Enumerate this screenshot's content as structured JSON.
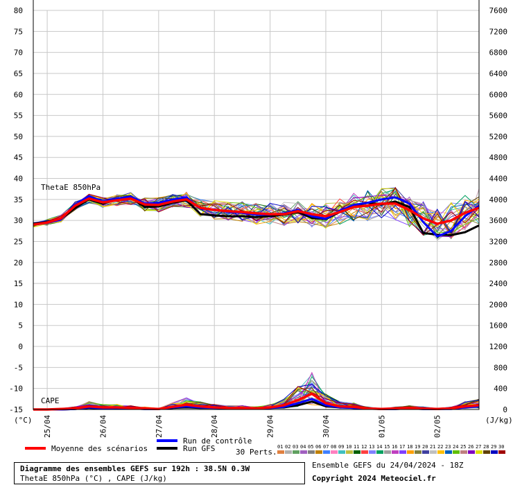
{
  "chart_data": {
    "type": "line",
    "title": "Diagramme des ensembles GEFS sur 192h : 38.5N 0.3W",
    "subtitle": "ThetaE 850hPa (°C) , CAPE (J/kg)",
    "run_info": "Ensemble GEFS du 24/04/2024 - 18Z",
    "copyright": "Copyright 2024 Meteociel.fr",
    "left_axis": {
      "unit": "(°C)",
      "ticks": [
        -15,
        -10,
        -5,
        0,
        5,
        10,
        15,
        20,
        25,
        30,
        35,
        40,
        45,
        50,
        55,
        60,
        65,
        70,
        75,
        80
      ],
      "ylim": [
        -15,
        80
      ]
    },
    "right_axis": {
      "unit": "(J/kg)",
      "ticks": [
        0,
        400,
        800,
        1200,
        1600,
        2000,
        2400,
        2800,
        3200,
        3600,
        4000,
        4400,
        4800,
        5200,
        5600,
        6000,
        6400,
        6800,
        7200,
        7600
      ],
      "ylim": [
        0,
        7600
      ]
    },
    "x_axis": {
      "labels": [
        "25/04",
        "26/04",
        "27/04",
        "28/04",
        "29/04",
        "30/04",
        "01/05",
        "02/05"
      ],
      "range_hours": [
        0,
        192
      ],
      "label_hours": [
        6,
        30,
        54,
        78,
        102,
        126,
        150,
        174
      ]
    },
    "annotations": {
      "thetae": "ThetaE 850hPa",
      "cape": "CAPE"
    },
    "legend": {
      "mean": "Moyenne des scénarios",
      "control": "Run de contrôle",
      "gfs": "Run GFS",
      "perts": "30 Perts.",
      "pert_labels": [
        "01",
        "02",
        "03",
        "04",
        "05",
        "06",
        "07",
        "08",
        "09",
        "10",
        "11",
        "12",
        "13",
        "14",
        "15",
        "16",
        "17",
        "18",
        "19",
        "20",
        "21",
        "22",
        "23",
        "24",
        "25",
        "26",
        "27",
        "28",
        "29",
        "30"
      ],
      "pert_colors": [
        "#e08040",
        "#b0b0b0",
        "#60a060",
        "#a060c0",
        "#808080",
        "#c08000",
        "#4080ff",
        "#ff80c0",
        "#40c0c0",
        "#c0c040",
        "#006000",
        "#ff4040",
        "#8080ff",
        "#00a060",
        "#a0a0a0",
        "#c040c0",
        "#8040ff",
        "#ffa000",
        "#808040",
        "#4040a0",
        "#c0c0c0",
        "#ffc000",
        "#0060c0",
        "#60c000",
        "#c08080",
        "#8000c0",
        "#e0e000",
        "#604000",
        "#0000c0",
        "#a00000"
      ]
    },
    "colors": {
      "mean": "#ff0000",
      "control": "#0000ff",
      "gfs": "#000000",
      "grid": "#c8c8c8"
    },
    "mean_thetae": {
      "hours": [
        0,
        6,
        12,
        18,
        24,
        30,
        36,
        42,
        48,
        54,
        60,
        66,
        72,
        78,
        84,
        90,
        96,
        102,
        108,
        114,
        120,
        126,
        132,
        138,
        144,
        150,
        156,
        162,
        168,
        174,
        180,
        186,
        192
      ],
      "values": [
        29,
        29.5,
        30.5,
        33.5,
        35.2,
        34.3,
        34.8,
        35.2,
        33.8,
        33.7,
        34.5,
        35,
        33,
        32.5,
        32.2,
        32,
        31.7,
        31.5,
        31.5,
        32.2,
        31.5,
        31,
        32,
        33.2,
        33.5,
        34,
        34,
        32.5,
        30.5,
        29.2,
        30,
        31.8,
        33
      ]
    },
    "control_thetae": {
      "hours": [
        0,
        6,
        12,
        18,
        24,
        30,
        36,
        42,
        48,
        54,
        60,
        66,
        72,
        78,
        84,
        90,
        96,
        102,
        108,
        114,
        120,
        126,
        132,
        138,
        144,
        150,
        156,
        162,
        168,
        174,
        180,
        186,
        192
      ],
      "values": [
        29,
        29.4,
        30.2,
        33.8,
        35.8,
        34.5,
        35.2,
        35.7,
        34,
        34.2,
        35,
        35.5,
        32.8,
        32.6,
        32,
        31.8,
        31.4,
        31.4,
        31.7,
        32.5,
        31,
        30.4,
        32.3,
        33.7,
        34.2,
        35,
        35.5,
        34,
        29.6,
        26.2,
        27.5,
        31,
        33.5
      ]
    },
    "gfs_thetae": {
      "hours": [
        0,
        6,
        12,
        18,
        24,
        30,
        36,
        42,
        48,
        54,
        60,
        66,
        72,
        78,
        84,
        90,
        96,
        102,
        108,
        114,
        120,
        126,
        132,
        138,
        144,
        150,
        156,
        162,
        168,
        174,
        180,
        186,
        192
      ],
      "values": [
        29.2,
        29.6,
        30.4,
        33,
        35,
        34,
        35,
        35.4,
        33.2,
        33.3,
        34.2,
        34.8,
        31.5,
        31.2,
        31,
        31,
        30.8,
        31,
        31.4,
        32,
        30.6,
        30.3,
        32,
        33.5,
        34.2,
        33.8,
        34.5,
        33.2,
        27,
        26.6,
        26.5,
        27.2,
        28.8
      ]
    },
    "mean_cape": {
      "hours": [
        0,
        6,
        12,
        18,
        24,
        30,
        36,
        42,
        48,
        54,
        60,
        66,
        72,
        78,
        84,
        90,
        96,
        102,
        108,
        114,
        120,
        126,
        132,
        138,
        144,
        150,
        156,
        162,
        168,
        174,
        180,
        186,
        192
      ],
      "values": [
        0,
        0,
        10,
        20,
        60,
        40,
        40,
        30,
        20,
        10,
        50,
        90,
        60,
        40,
        30,
        30,
        20,
        40,
        80,
        180,
        300,
        120,
        60,
        50,
        20,
        10,
        20,
        30,
        20,
        10,
        20,
        60,
        80
      ]
    },
    "control_cape": {
      "hours": [
        0,
        6,
        12,
        18,
        24,
        30,
        36,
        42,
        48,
        54,
        60,
        66,
        72,
        78,
        84,
        90,
        96,
        102,
        108,
        114,
        120,
        126,
        132,
        138,
        144,
        150,
        156,
        162,
        168,
        174,
        180,
        186,
        192
      ],
      "values": [
        0,
        0,
        0,
        10,
        40,
        20,
        30,
        20,
        10,
        10,
        40,
        60,
        40,
        30,
        30,
        20,
        20,
        30,
        50,
        120,
        200,
        80,
        40,
        30,
        20,
        10,
        10,
        20,
        10,
        10,
        10,
        40,
        60
      ]
    },
    "gfs_cape": {
      "hours": [
        0,
        6,
        12,
        18,
        24,
        30,
        36,
        42,
        48,
        54,
        60,
        66,
        72,
        78,
        84,
        90,
        96,
        102,
        108,
        114,
        120,
        126,
        132,
        138,
        144,
        150,
        156,
        162,
        168,
        174,
        180,
        186,
        192
      ],
      "values": [
        0,
        0,
        0,
        10,
        30,
        20,
        20,
        20,
        10,
        10,
        30,
        40,
        30,
        30,
        20,
        20,
        20,
        30,
        40,
        80,
        150,
        60,
        40,
        30,
        20,
        10,
        10,
        20,
        10,
        10,
        20,
        50,
        90
      ]
    }
  }
}
